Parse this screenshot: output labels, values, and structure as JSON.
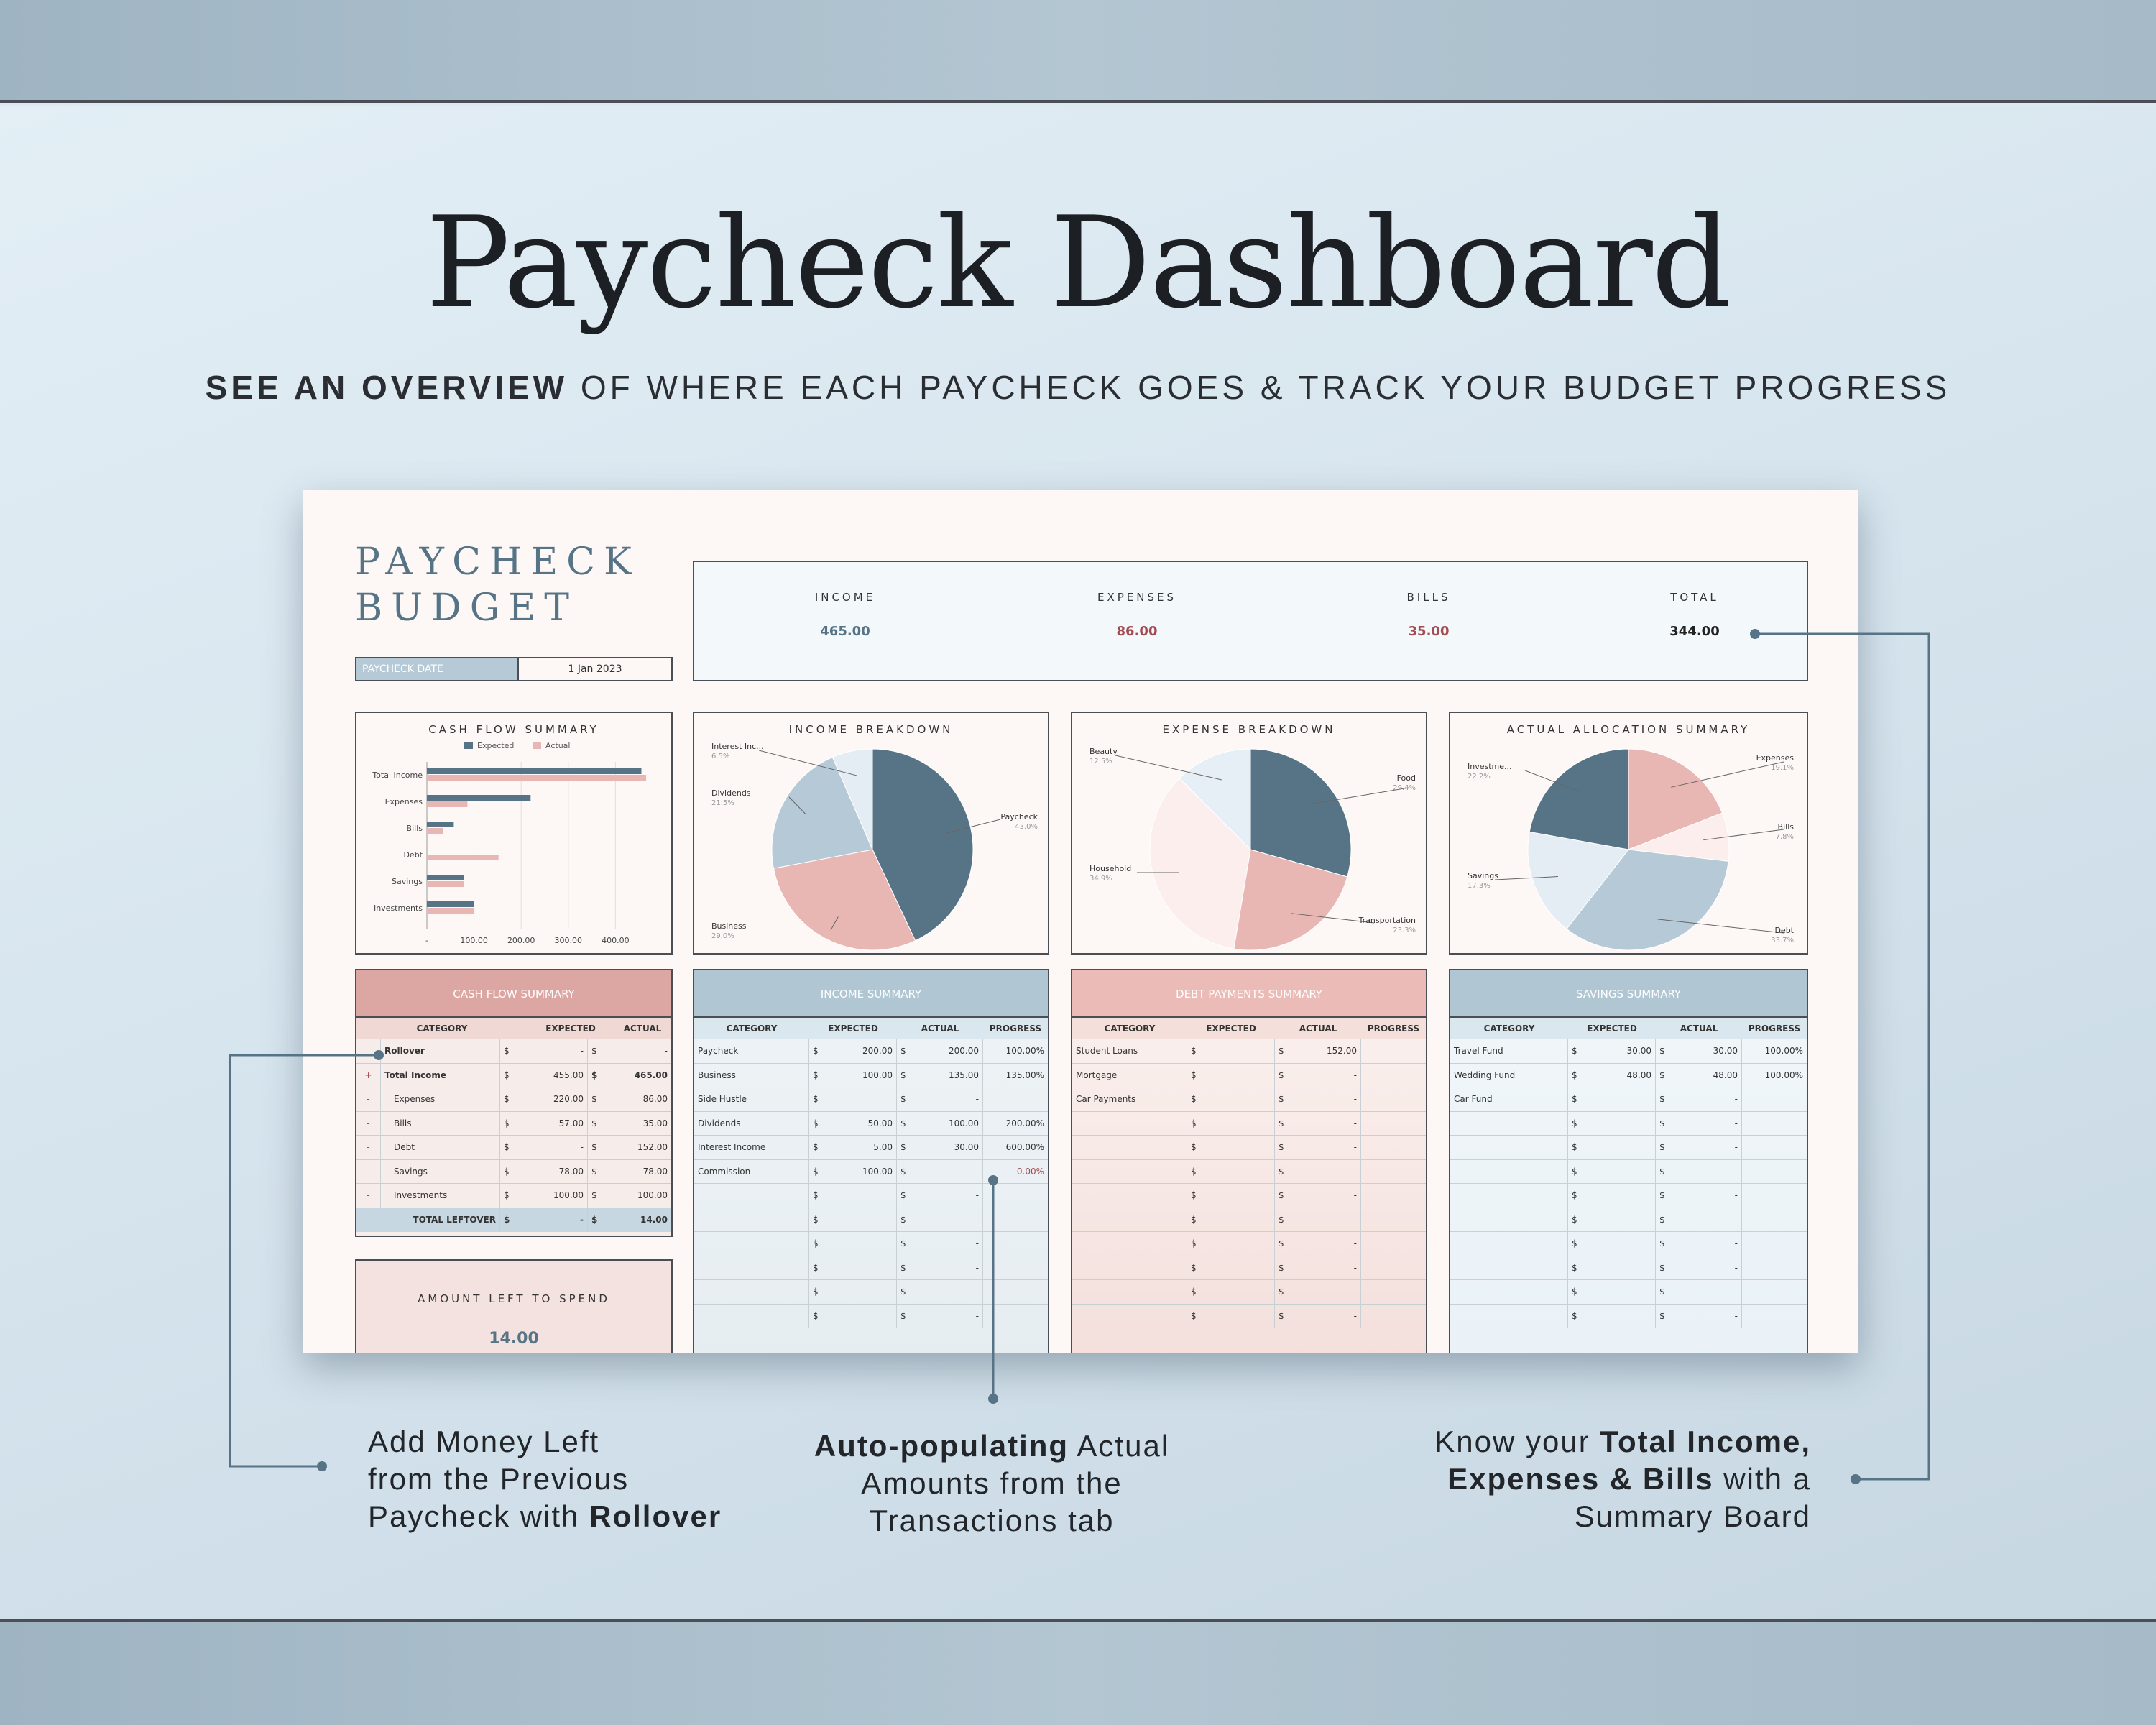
{
  "header": {
    "title": "Paycheck Dashboard",
    "subtitle_bold": "SEE AN OVERVIEW",
    "subtitle_rest": " OF WHERE EACH PAYCHECK GOES & TRACK YOUR BUDGET PROGRESS"
  },
  "sheet": {
    "title_line1": "PAYCHECK",
    "title_line2": "BUDGET",
    "date_label": "PAYCHECK DATE",
    "date_value": "1 Jan 2023",
    "stats": [
      {
        "label": "INCOME",
        "value": "465.00",
        "color": "#577486"
      },
      {
        "label": "EXPENSES",
        "value": "86.00",
        "color": "#a24b52"
      },
      {
        "label": "BILLS",
        "value": "35.00",
        "color": "#a24b52"
      },
      {
        "label": "TOTAL",
        "value": "344.00",
        "color": "#222222"
      }
    ],
    "amount_left_label": "AMOUNT LEFT TO SPEND",
    "amount_left_value": "14.00"
  },
  "chart_data": [
    {
      "type": "bar",
      "title": "CASH FLOW SUMMARY",
      "orientation": "horizontal",
      "categories": [
        "Total Income",
        "Expenses",
        "Bills",
        "Debt",
        "Savings",
        "Investments"
      ],
      "series": [
        {
          "name": "Expected",
          "values": [
            455,
            220,
            57,
            0,
            78,
            100
          ],
          "color": "#577486"
        },
        {
          "name": "Actual",
          "values": [
            465,
            86,
            35,
            152,
            78,
            100
          ],
          "color": "#e9b7b3"
        }
      ],
      "x_ticks": [
        "-",
        "100.00",
        "200.00",
        "300.00",
        "400.00"
      ],
      "xlim": [
        0,
        500
      ],
      "legend": "top"
    },
    {
      "type": "pie",
      "title": "INCOME BREAKDOWN",
      "slices": [
        {
          "label": "Paycheck",
          "pct": "43.0%",
          "value": 43.0,
          "color": "#577486"
        },
        {
          "label": "Business",
          "pct": "29.0%",
          "value": 29.0,
          "color": "#e9b7b3"
        },
        {
          "label": "Dividends",
          "pct": "21.5%",
          "value": 21.5,
          "color": "#b5c9d6"
        },
        {
          "label": "Interest Inc...",
          "pct": "6.5%",
          "value": 6.5,
          "color": "#e4edf3"
        }
      ]
    },
    {
      "type": "pie",
      "title": "EXPENSE BREAKDOWN",
      "slices": [
        {
          "label": "Food",
          "pct": "29.4%",
          "value": 29.4,
          "color": "#577486"
        },
        {
          "label": "Transportation",
          "pct": "23.3%",
          "value": 23.3,
          "color": "#e9b7b3"
        },
        {
          "label": "Household",
          "pct": "34.9%",
          "value": 34.9,
          "color": "#fbeeed"
        },
        {
          "label": "Beauty",
          "pct": "12.5%",
          "value": 12.5,
          "color": "#e6eff5"
        }
      ]
    },
    {
      "type": "pie",
      "title": "ACTUAL ALLOCATION SUMMARY",
      "slices": [
        {
          "label": "Expenses",
          "pct": "19.1%",
          "value": 19.1,
          "color": "#e9b7b3"
        },
        {
          "label": "Bills",
          "pct": "7.8%",
          "value": 7.8,
          "color": "#fbeeed"
        },
        {
          "label": "Debt",
          "pct": "33.7%",
          "value": 33.7,
          "color": "#b5c9d6"
        },
        {
          "label": "Savings",
          "pct": "17.3%",
          "value": 17.3,
          "color": "#e4edf3"
        },
        {
          "label": "Investme...",
          "pct": "22.2%",
          "value": 22.2,
          "color": "#577486"
        }
      ]
    }
  ],
  "tables": {
    "cashflow": {
      "title": "CASH FLOW SUMMARY",
      "headers": [
        "CATEGORY",
        "EXPECTED",
        "ACTUAL"
      ],
      "rows": [
        [
          "",
          "Rollover",
          "$",
          "-",
          "$",
          "-"
        ],
        [
          "+",
          "Total Income",
          "$",
          "455.00",
          "$",
          "465.00"
        ],
        [
          "-",
          "Expenses",
          "$",
          "220.00",
          "$",
          "86.00"
        ],
        [
          "-",
          "Bills",
          "$",
          "57.00",
          "$",
          "35.00"
        ],
        [
          "-",
          "Debt",
          "$",
          "-",
          "$",
          "152.00"
        ],
        [
          "-",
          "Savings",
          "$",
          "78.00",
          "$",
          "78.00"
        ],
        [
          "-",
          "Investments",
          "$",
          "100.00",
          "$",
          "100.00"
        ]
      ],
      "total": [
        "TOTAL LEFTOVER",
        "$",
        "-",
        "$",
        "14.00"
      ]
    },
    "income": {
      "title": "INCOME SUMMARY",
      "headers": [
        "CATEGORY",
        "EXPECTED",
        "ACTUAL",
        "PROGRESS"
      ],
      "rows": [
        [
          "Paycheck",
          "200.00",
          "200.00",
          "100.00%"
        ],
        [
          "Business",
          "100.00",
          "135.00",
          "135.00%"
        ],
        [
          "Side Hustle",
          "",
          "-",
          ""
        ],
        [
          "Dividends",
          "50.00",
          "100.00",
          "200.00%"
        ],
        [
          "Interest Income",
          "5.00",
          "30.00",
          "600.00%"
        ],
        [
          "Commission",
          "100.00",
          "-",
          "0.00%"
        ],
        [
          "",
          "",
          "-",
          ""
        ],
        [
          "",
          "",
          "-",
          ""
        ],
        [
          "",
          "",
          "-",
          ""
        ],
        [
          "",
          "",
          "-",
          ""
        ],
        [
          "",
          "",
          "-",
          ""
        ],
        [
          "",
          "",
          "-",
          ""
        ]
      ]
    },
    "debt": {
      "title": "DEBT PAYMENTS SUMMARY",
      "headers": [
        "CATEGORY",
        "EXPECTED",
        "ACTUAL",
        "PROGRESS"
      ],
      "rows": [
        [
          "Student Loans",
          "",
          "152.00",
          ""
        ],
        [
          "Mortgage",
          "",
          "-",
          ""
        ],
        [
          "Car Payments",
          "",
          "-",
          ""
        ],
        [
          "",
          "",
          "-",
          ""
        ],
        [
          "",
          "",
          "-",
          ""
        ],
        [
          "",
          "",
          "-",
          ""
        ],
        [
          "",
          "",
          "-",
          ""
        ],
        [
          "",
          "",
          "-",
          ""
        ],
        [
          "",
          "",
          "-",
          ""
        ],
        [
          "",
          "",
          "-",
          ""
        ],
        [
          "",
          "",
          "-",
          ""
        ],
        [
          "",
          "",
          "-",
          ""
        ]
      ]
    },
    "savings": {
      "title": "SAVINGS SUMMARY",
      "headers": [
        "CATEGORY",
        "EXPECTED",
        "ACTUAL",
        "PROGRESS"
      ],
      "rows": [
        [
          "Travel Fund",
          "30.00",
          "30.00",
          "100.00%"
        ],
        [
          "Wedding Fund",
          "48.00",
          "48.00",
          "100.00%"
        ],
        [
          "Car Fund",
          "",
          "-",
          ""
        ],
        [
          "",
          "",
          "-",
          ""
        ],
        [
          "",
          "",
          "-",
          ""
        ],
        [
          "",
          "",
          "-",
          ""
        ],
        [
          "",
          "",
          "-",
          ""
        ],
        [
          "",
          "",
          "-",
          ""
        ],
        [
          "",
          "",
          "-",
          ""
        ],
        [
          "",
          "",
          "-",
          ""
        ],
        [
          "",
          "",
          "-",
          ""
        ],
        [
          "",
          "",
          "-",
          ""
        ]
      ]
    }
  },
  "callouts": {
    "left": [
      "Add Money Left",
      "from the Previous",
      "Paycheck with ",
      "Rollover"
    ],
    "middle": [
      "Auto-populating",
      " Actual",
      "Amounts from the",
      "Transactions tab"
    ],
    "right": [
      "Know your ",
      "Total Income,",
      "Expenses & Bills",
      " with a",
      "Summary Board"
    ]
  }
}
